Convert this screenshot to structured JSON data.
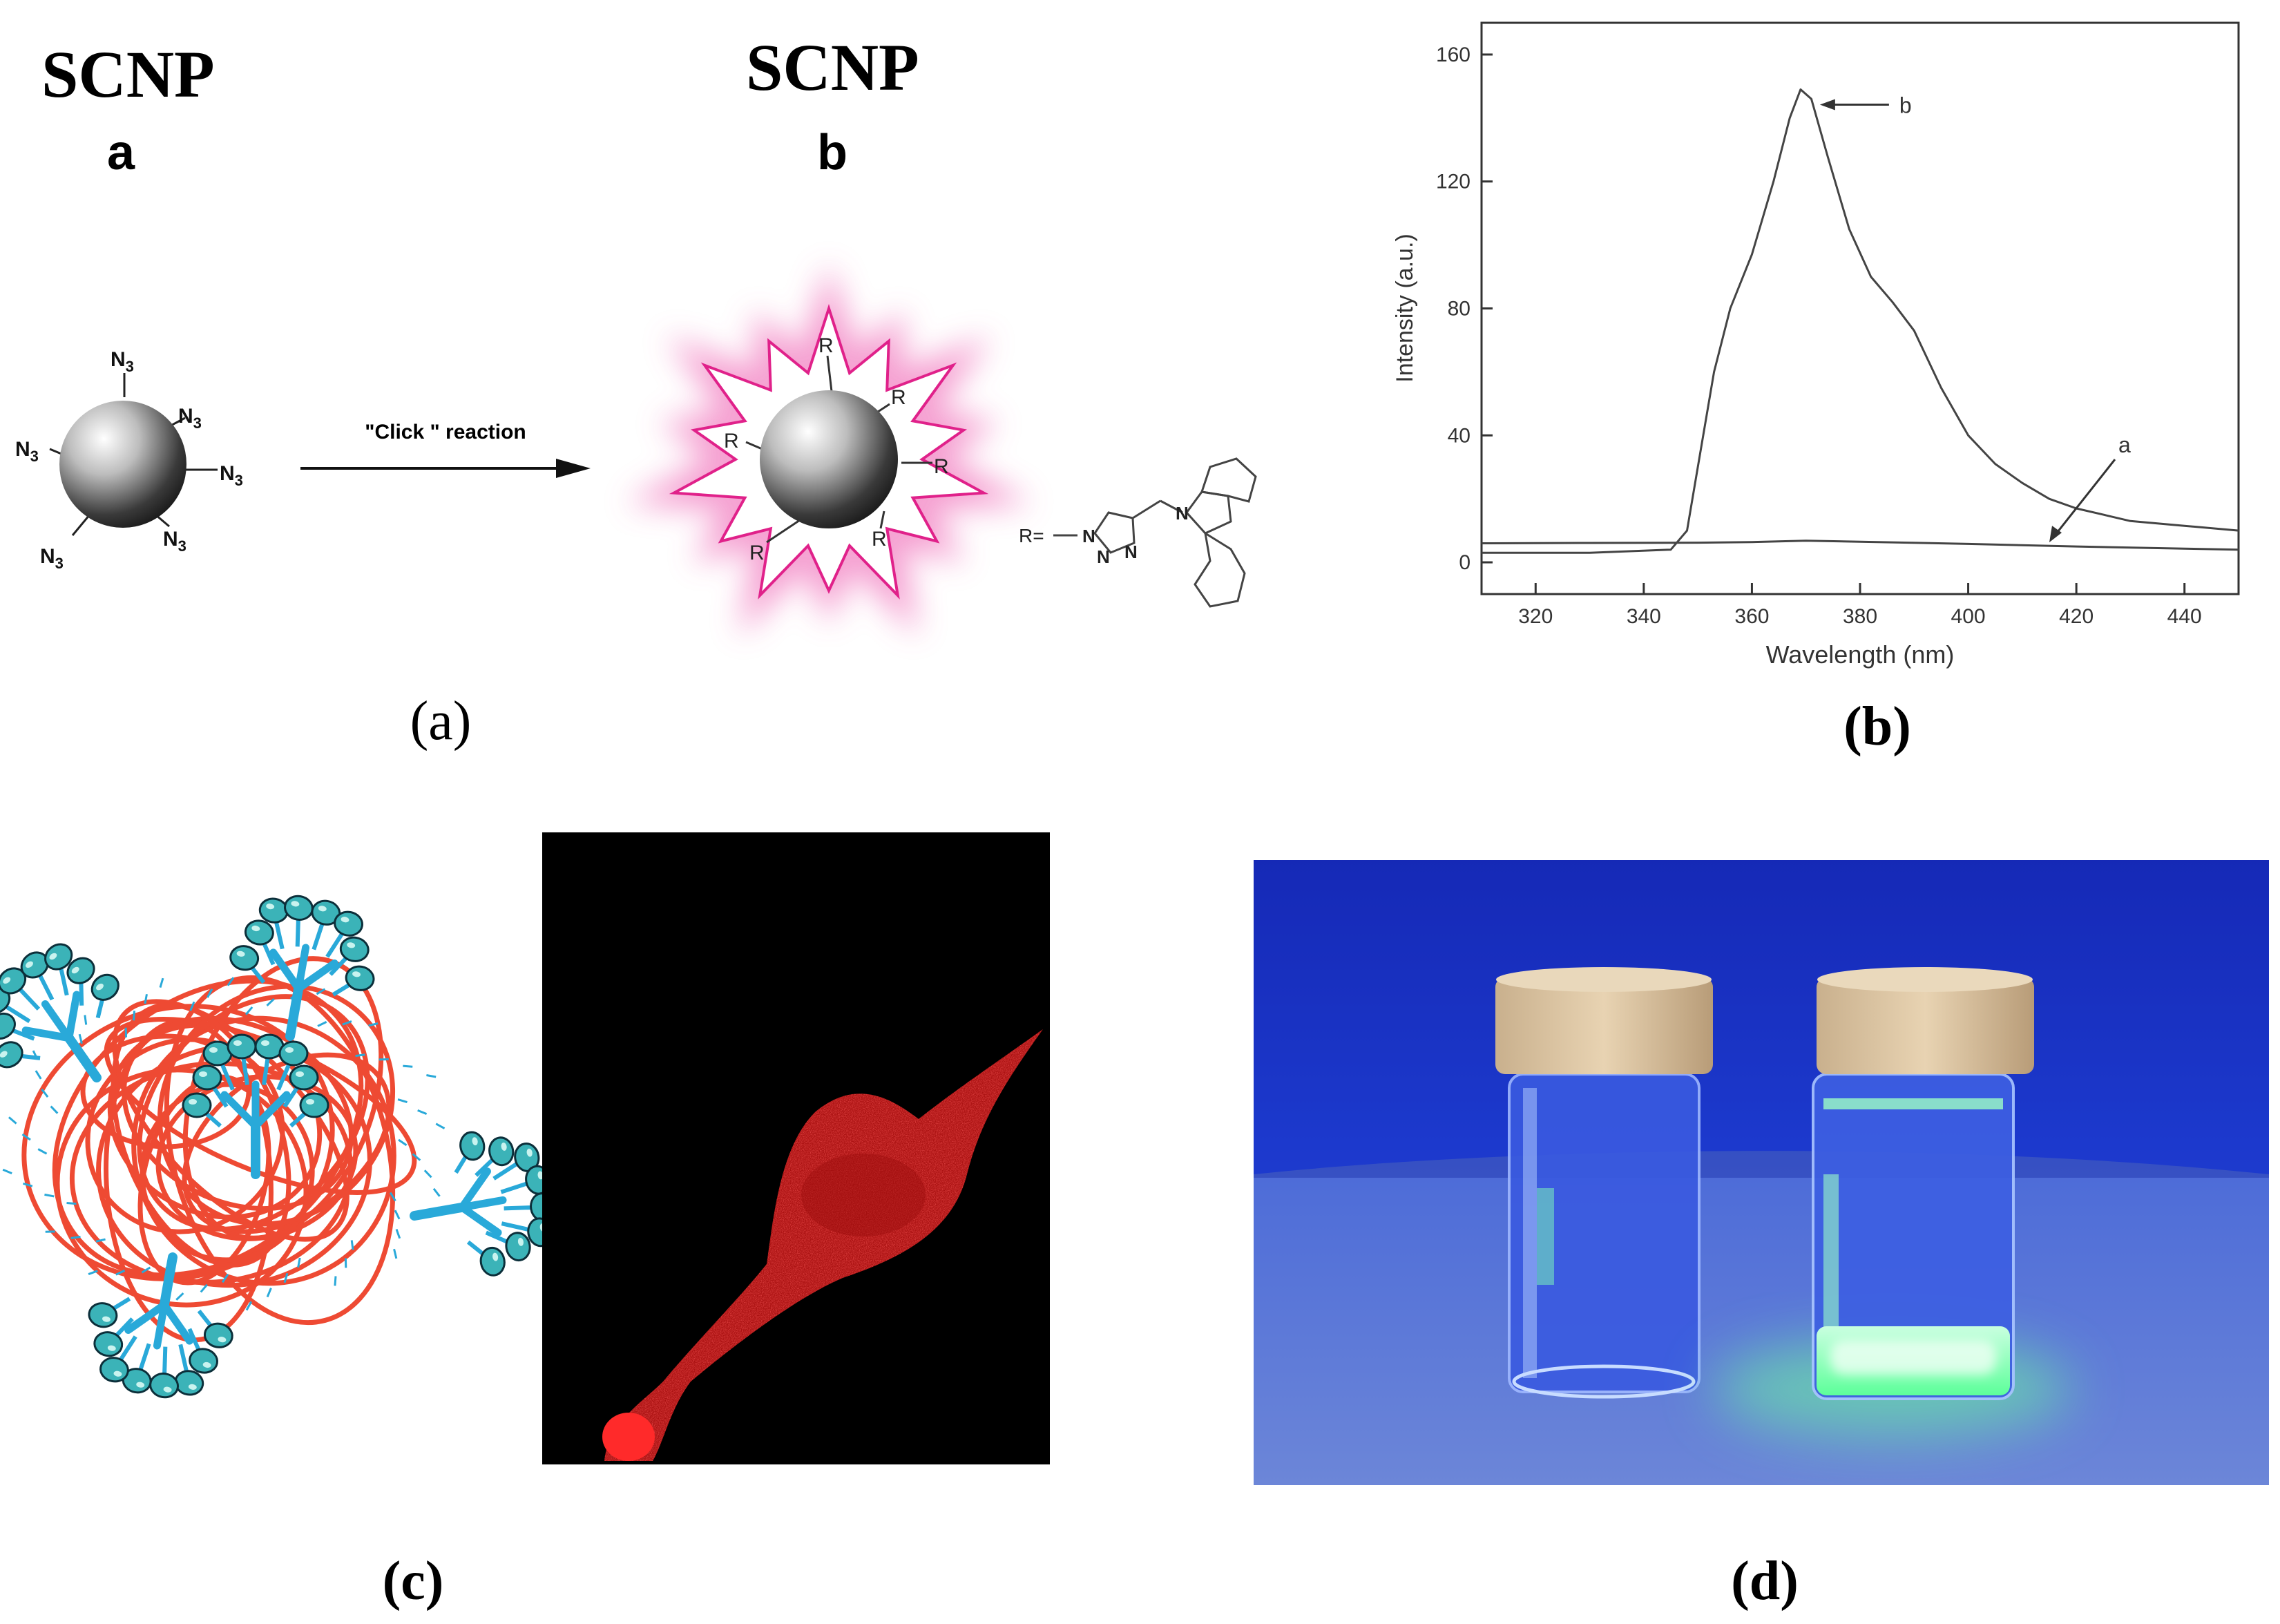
{
  "panel_a": {
    "label_a": {
      "title": "SCNP",
      "letter": "a"
    },
    "label_b": {
      "title": "SCNP",
      "letter": "b"
    },
    "azide": "N",
    "azide_sub": "3",
    "arrow_label": "\"Click \" reaction",
    "substituent": "R",
    "r_def": "R=",
    "atoms": {
      "n": "N"
    },
    "caption": "(a)"
  },
  "chart_data": {
    "type": "line",
    "xlabel": "Wavelength (nm)",
    "ylabel": "Intensity (a.u.)",
    "xlim": [
      310,
      450
    ],
    "ylim": [
      -10,
      170
    ],
    "xticks": [
      320,
      340,
      360,
      380,
      400,
      420,
      440
    ],
    "yticks": [
      0,
      40,
      80,
      120,
      160
    ],
    "grid": false,
    "legend": "none",
    "series": [
      {
        "name": "a",
        "x": [
          310,
          330,
          350,
          360,
          370,
          380,
          400,
          420,
          440,
          450
        ],
        "y": [
          6.0,
          6.1,
          6.2,
          6.4,
          6.8,
          6.5,
          5.8,
          5.0,
          4.3,
          4.0
        ]
      },
      {
        "name": "b",
        "x": [
          310,
          330,
          345,
          348,
          350,
          353,
          356,
          360,
          364,
          367,
          369,
          371,
          374,
          378,
          382,
          386,
          390,
          395,
          400,
          405,
          410,
          415,
          420,
          425,
          430,
          440,
          450
        ],
        "y": [
          3,
          3,
          4,
          10,
          30,
          60,
          80,
          97,
          120,
          140,
          149,
          146,
          128,
          105,
          90,
          82,
          73,
          55,
          40,
          31,
          25,
          20,
          17,
          15,
          13,
          11.5,
          10
        ]
      }
    ],
    "annotations": [
      {
        "text": "b",
        "series": "b"
      },
      {
        "text": "a",
        "series": "a"
      }
    ],
    "caption": "(b)"
  },
  "panel_c": {
    "caption": "(c)"
  },
  "panel_d": {
    "caption": "(d)"
  },
  "colors": {
    "magenta": "#e0218a",
    "coil": "#ee4a33",
    "dendron": "#29a9d9",
    "cell_red": "#e82020",
    "uv_blue": "#1f3dd6",
    "glow_green": "#6dff9b"
  }
}
